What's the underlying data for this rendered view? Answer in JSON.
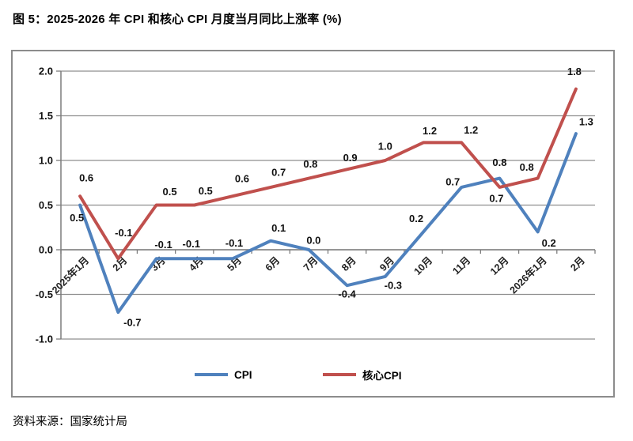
{
  "title": "图 5：2025-2026 年 CPI 和核心 CPI 月度当月同比上涨率 (%)",
  "source": "资料来源：国家统计局",
  "chart_data": {
    "type": "line",
    "title": "2025-2026 年 CPI 和核心 CPI 月度当月同比上涨率 (%)",
    "categories": [
      "2025年1月",
      "2月",
      "3月",
      "4月",
      "5月",
      "6月",
      "7月",
      "8月",
      "9月",
      "10月",
      "11月",
      "12月",
      "2026年1月",
      "2月"
    ],
    "series": [
      {
        "name": "CPI",
        "color": "#4F81BD",
        "values": [
          0.5,
          -0.7,
          -0.1,
          -0.1,
          -0.1,
          0.1,
          0.0,
          -0.4,
          -0.3,
          0.2,
          0.7,
          0.8,
          0.2,
          1.3
        ],
        "label_offsets": [
          [
            -4,
            16
          ],
          [
            18,
            13
          ],
          [
            9,
            -18
          ],
          [
            -4,
            -19
          ],
          [
            2,
            -20
          ],
          [
            10,
            -16
          ],
          [
            6,
            -12
          ],
          [
            0,
            11
          ],
          [
            10,
            11
          ],
          [
            -9,
            -17
          ],
          [
            -11,
            -7
          ],
          [
            0,
            -20
          ],
          [
            14,
            14
          ],
          [
            13,
            -15
          ]
        ]
      },
      {
        "name": "核心CPI",
        "color": "#C0504D",
        "values": [
          0.6,
          -0.1,
          0.5,
          0.5,
          0.6,
          0.7,
          0.8,
          0.9,
          1.0,
          1.2,
          1.2,
          0.7,
          0.8,
          1.8
        ],
        "label_offsets": [
          [
            8,
            -23
          ],
          [
            7,
            -33
          ],
          [
            17,
            -17
          ],
          [
            14,
            -18
          ],
          [
            12,
            -22
          ],
          [
            10,
            -19
          ],
          [
            2,
            -18
          ],
          [
            4,
            -15
          ],
          [
            0,
            -18
          ],
          [
            8,
            -15
          ],
          [
            12,
            -16
          ],
          [
            -4,
            14
          ],
          [
            -14,
            -14
          ],
          [
            -2,
            -22
          ]
        ]
      }
    ],
    "ylim": [
      -1.0,
      2.0
    ],
    "ytick_step": 0.5,
    "ytick_labels": [
      "2.0",
      "1.5",
      "1.0",
      "0.5",
      "0.0",
      "-0.5",
      "-1.0"
    ],
    "xlabel": "",
    "ylabel": "",
    "grid": true,
    "legend_position": "bottom",
    "axis_color": "#7d7d7d",
    "grid_color": "#8f8f8f"
  }
}
